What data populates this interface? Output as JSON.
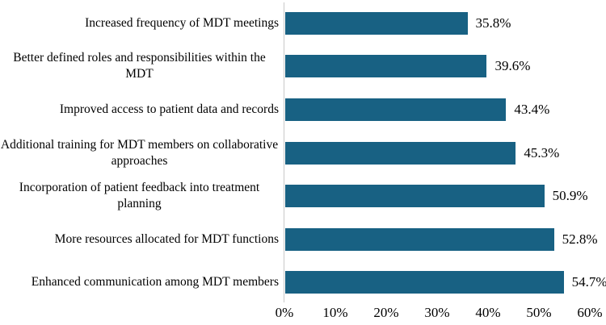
{
  "chart_data": {
    "type": "bar",
    "orientation": "horizontal",
    "title": "",
    "xlabel": "",
    "ylabel": "",
    "categories": [
      "Increased frequency of MDT meetings",
      "Better defined roles and responsibilities within the MDT",
      "Improved access to patient data and records",
      "Additional training for MDT members on collaborative approaches",
      "Incorporation of patient feedback into treatment planning",
      "More resources allocated for MDT functions",
      "Enhanced communication among MDT members"
    ],
    "values": [
      35.8,
      39.6,
      43.4,
      45.3,
      50.9,
      52.8,
      54.7
    ],
    "value_labels": [
      "35.8%",
      "39.6%",
      "43.4%",
      "45.3%",
      "50.9%",
      "52.8%",
      "54.7%"
    ],
    "x_ticks": [
      "0%",
      "10%",
      "20%",
      "30%",
      "40%",
      "50%",
      "60%"
    ],
    "xlim": [
      0,
      60
    ],
    "grid": "off",
    "legend": "none",
    "bar_color": "#186183",
    "axis_line_color": "#C9C9C9",
    "text_color": "#000000"
  }
}
